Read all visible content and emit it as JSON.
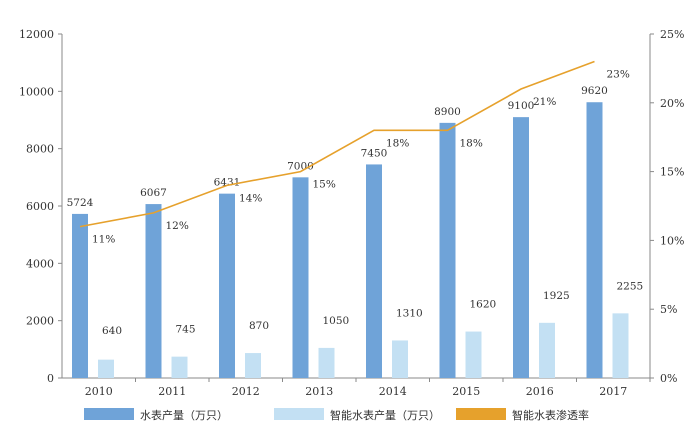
{
  "chart_data": {
    "type": "bar",
    "categories": [
      "2010",
      "2011",
      "2012",
      "2013",
      "2014",
      "2015",
      "2016",
      "2017"
    ],
    "series": [
      {
        "name": "水表产量（万只）",
        "kind": "bar",
        "axis": "left",
        "color": "#6fa3d8",
        "values": [
          5724,
          6067,
          6431,
          7000,
          7450,
          8900,
          9100,
          9620
        ],
        "labels": [
          "5724",
          "6067",
          "6431",
          "7000",
          "7450",
          "8900",
          "9100",
          "9620"
        ]
      },
      {
        "name": "智能水表产量（万只）",
        "kind": "bar",
        "axis": "left",
        "color": "#c3e0f3",
        "values": [
          640,
          745,
          870,
          1050,
          1310,
          1620,
          1925,
          2255
        ],
        "labels": [
          "640",
          "745",
          "870",
          "1050",
          "1310",
          "1620",
          "1925",
          "2255"
        ]
      },
      {
        "name": "智能水表渗透率",
        "kind": "line",
        "axis": "right",
        "color": "#e6a12c",
        "values": [
          0.11,
          0.12,
          0.14,
          0.15,
          0.18,
          0.18,
          0.21,
          0.23
        ],
        "labels": [
          "11%",
          "12%",
          "14%",
          "15%",
          "18%",
          "18%",
          "21%",
          "23%"
        ]
      }
    ],
    "y_left": {
      "range": [
        0,
        12000
      ],
      "ticks": [
        "0",
        "2000",
        "4000",
        "6000",
        "8000",
        "10000",
        "12000"
      ],
      "tick_values": [
        0,
        2000,
        4000,
        6000,
        8000,
        10000,
        12000
      ]
    },
    "y_right": {
      "range": [
        0,
        0.25
      ],
      "ticks": [
        "0%",
        "5%",
        "10%",
        "15%",
        "20%",
        "25%"
      ],
      "tick_values": [
        0,
        0.05,
        0.1,
        0.15,
        0.2,
        0.25
      ]
    },
    "grid": false,
    "legend_position": "bottom"
  }
}
